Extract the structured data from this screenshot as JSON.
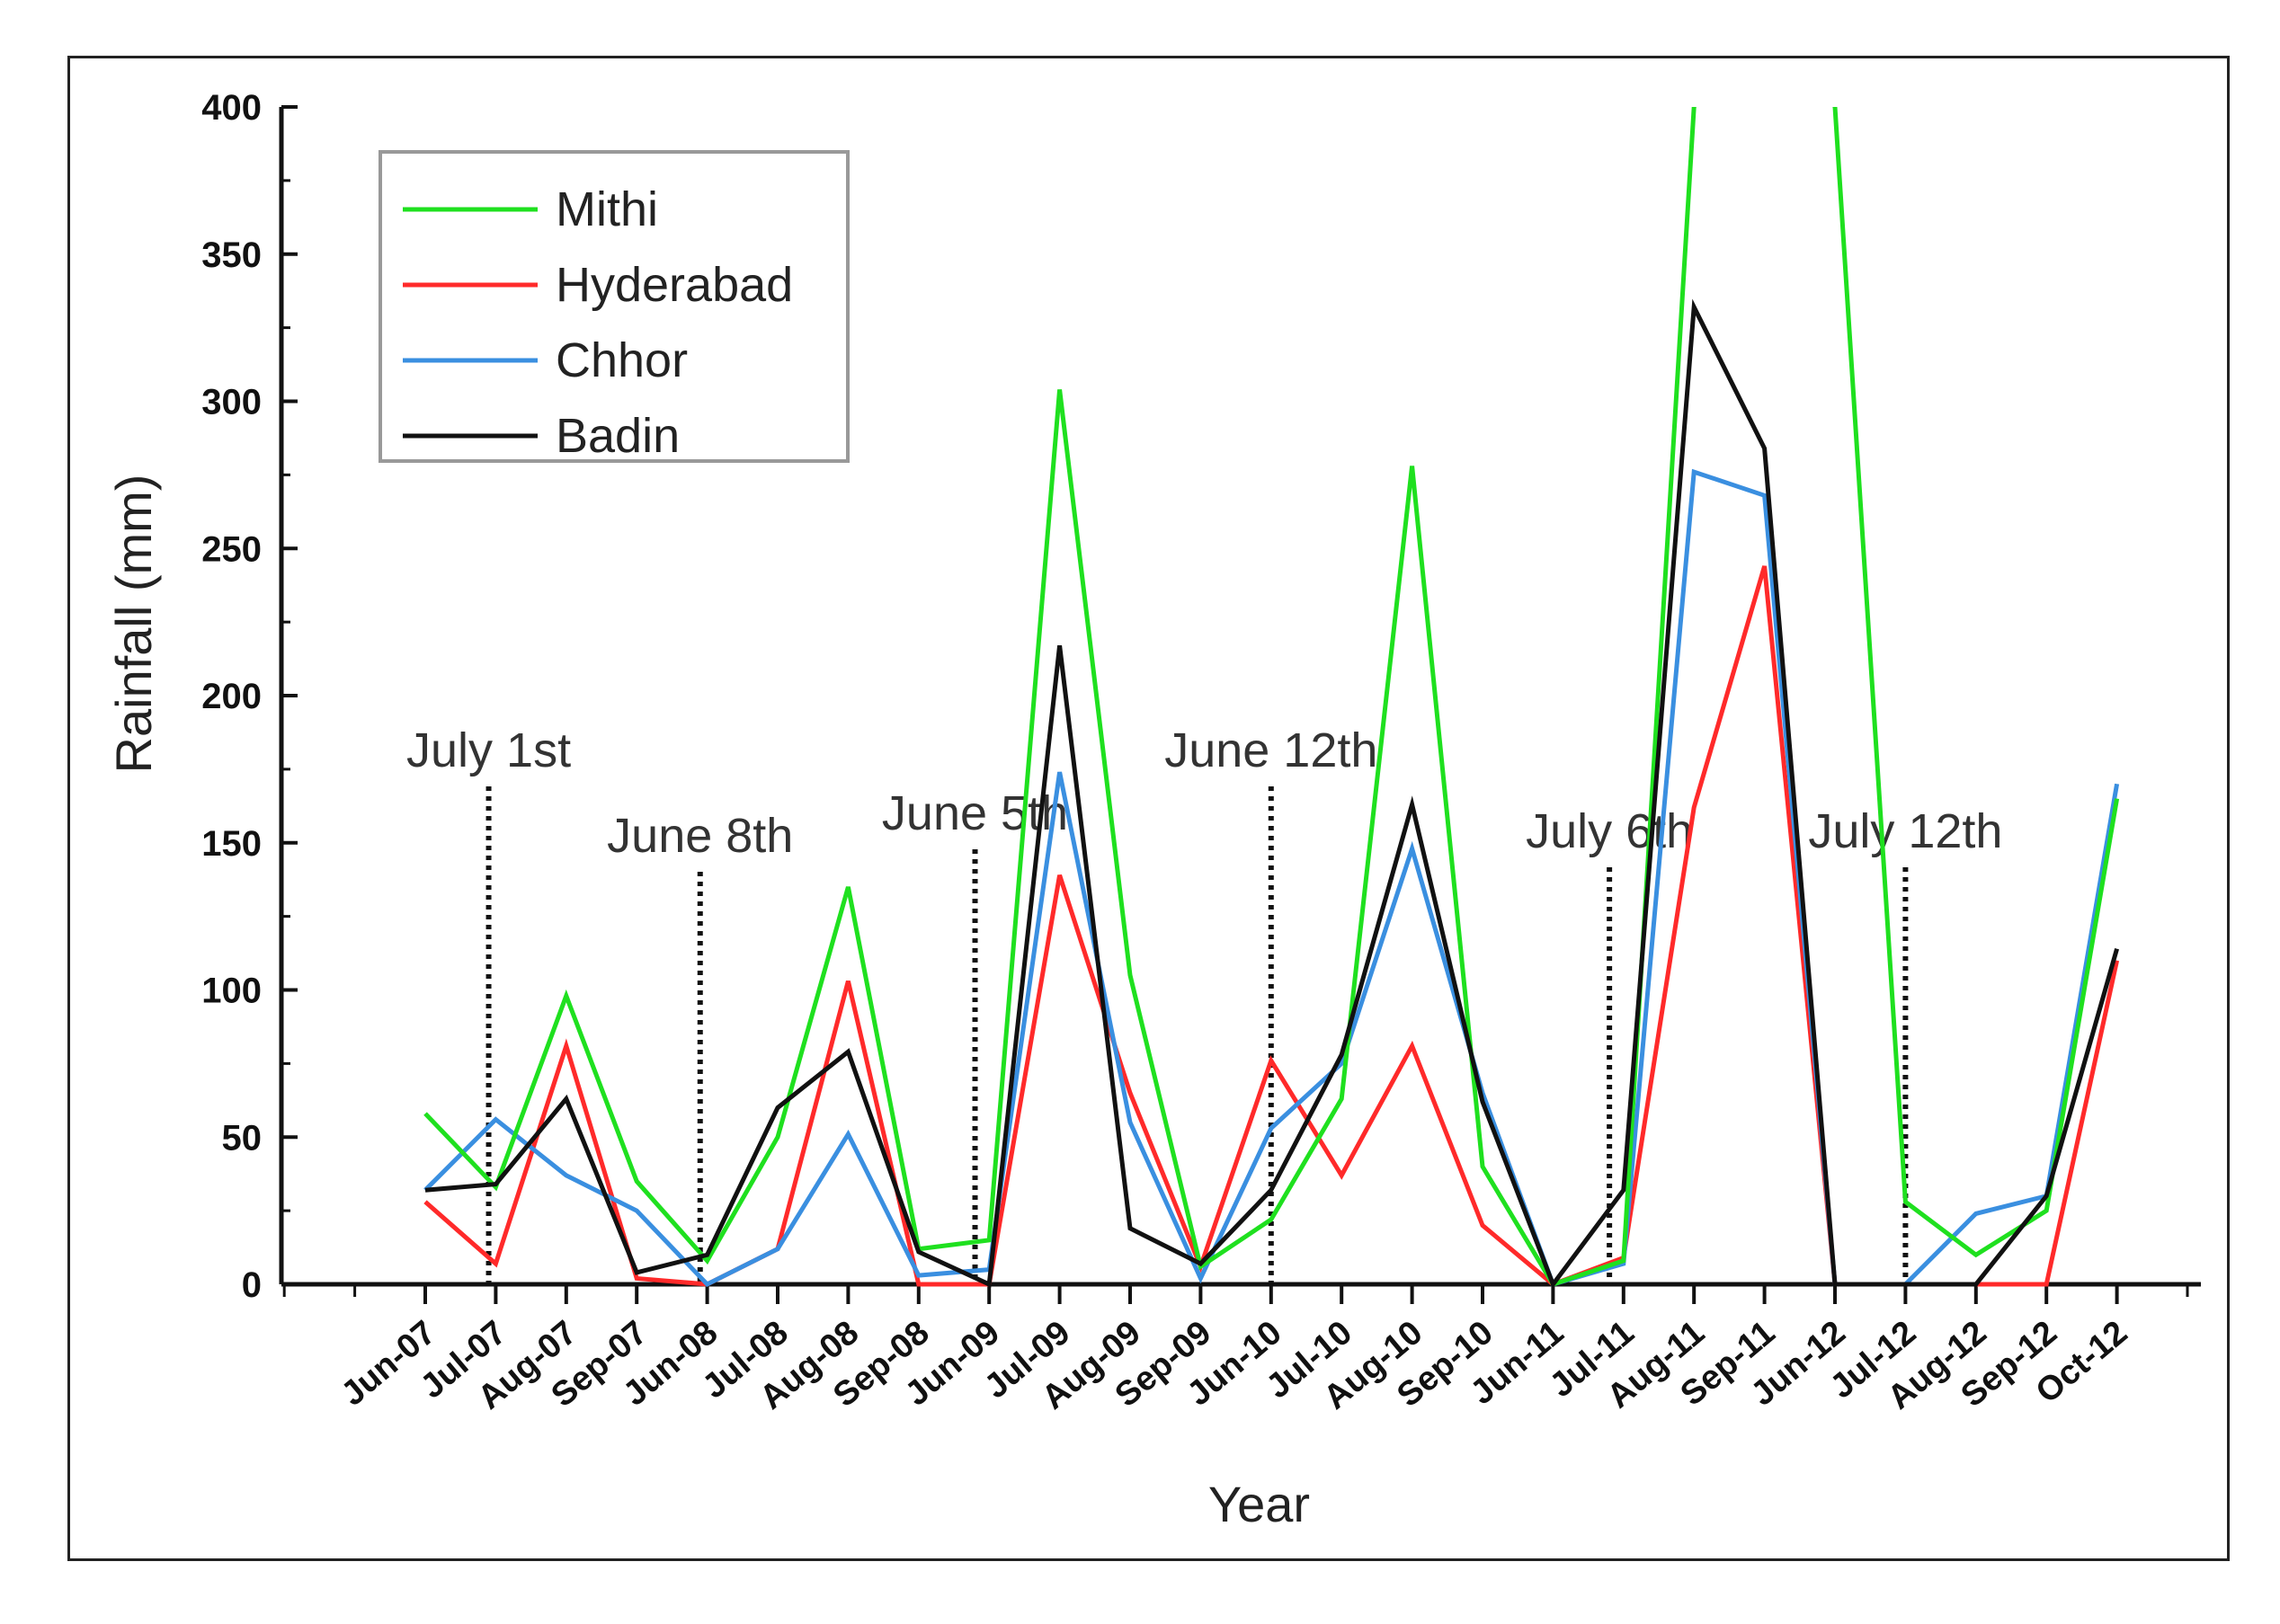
{
  "chart_data": {
    "type": "line",
    "title": "",
    "xlabel": "Year",
    "ylabel": "Rainfall (mm)",
    "ylim": [
      0,
      400
    ],
    "yticks": [
      0,
      50,
      100,
      150,
      200,
      250,
      300,
      350,
      400
    ],
    "categories": [
      "Jun-07",
      "Jul-07",
      "Aug-07",
      "Sep-07",
      "Jun-08",
      "Jul-08",
      "Aug-08",
      "Sep-08",
      "Jun-09",
      "Jul-09",
      "Aug-09",
      "Sep-09",
      "Jun-10",
      "Jul-10",
      "Aug-10",
      "Sep-10",
      "Jun-11",
      "Jul-11",
      "Aug-11",
      "Sep-11",
      "Jun-12",
      "Jul-12",
      "Aug-12",
      "Sep-12",
      "Oct-12"
    ],
    "legend_position": "top-left",
    "series": [
      {
        "name": "Mithi",
        "color": "#1fe01f",
        "values": [
          58,
          33,
          98,
          35,
          8,
          50,
          135,
          12,
          15,
          304,
          105,
          6,
          22,
          63,
          278,
          40,
          0,
          8,
          400,
          null,
          400,
          28,
          10,
          25,
          165
        ]
      },
      {
        "name": "Hyderabad",
        "color": "#ff2a2a",
        "values": [
          28,
          7,
          81,
          2,
          0,
          12,
          103,
          0,
          0,
          139,
          65,
          6,
          76,
          37,
          81,
          20,
          0,
          9,
          162,
          244,
          0,
          0,
          0,
          0,
          110
        ]
      },
      {
        "name": "Chhor",
        "color": "#3a8fe0",
        "values": [
          32,
          56,
          37,
          25,
          0,
          12,
          51,
          3,
          5,
          174,
          55,
          2,
          53,
          75,
          148,
          65,
          0,
          7,
          276,
          268,
          0,
          0,
          24,
          30,
          170
        ]
      },
      {
        "name": "Badin",
        "color": "#111111",
        "values": [
          32,
          34,
          63,
          4,
          10,
          60,
          79,
          11,
          0,
          217,
          19,
          7,
          32,
          78,
          163,
          62,
          0,
          32,
          332,
          284,
          0,
          0,
          0,
          30,
          114
        ]
      }
    ],
    "annotations": [
      {
        "text": "July 1st",
        "x_index": 0.9
      },
      {
        "text": "June 8th",
        "x_index": 3.9
      },
      {
        "text": "June 5th",
        "x_index": 7.8
      },
      {
        "text": "June 12th",
        "x_index": 12.0
      },
      {
        "text": "July 6th",
        "x_index": 16.8
      },
      {
        "text": "July 12th",
        "x_index": 21.0
      }
    ]
  }
}
